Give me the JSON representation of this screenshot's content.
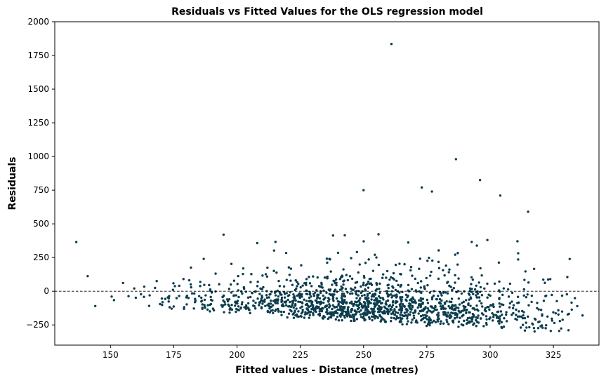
{
  "chart_data": {
    "type": "scatter",
    "title": "Residuals vs Fitted Values for the OLS regression model",
    "xlabel": "Fitted values - Distance (metres)",
    "ylabel": "Residuals",
    "xlim": [
      128,
      343
    ],
    "ylim": [
      -400,
      2000
    ],
    "xticks": [
      150,
      175,
      200,
      225,
      250,
      275,
      300,
      325
    ],
    "yticks": [
      -250,
      0,
      250,
      500,
      750,
      1000,
      1250,
      1500,
      1750,
      2000
    ],
    "grid": false,
    "reference_line": {
      "y": 0,
      "style": "dashed",
      "color": "#000000"
    },
    "point_color": "#0b3d4e",
    "notable_points": [
      {
        "x": 136.5,
        "y": 365
      },
      {
        "x": 141,
        "y": 112
      },
      {
        "x": 144,
        "y": -110
      },
      {
        "x": 250,
        "y": 750
      },
      {
        "x": 261,
        "y": 1835
      },
      {
        "x": 273,
        "y": 770
      },
      {
        "x": 277,
        "y": 740
      },
      {
        "x": 286.5,
        "y": 980
      },
      {
        "x": 296,
        "y": 825
      },
      {
        "x": 304,
        "y": 710
      },
      {
        "x": 315,
        "y": 590
      },
      {
        "x": 330.5,
        "y": 105
      },
      {
        "x": 336.5,
        "y": -180
      }
    ],
    "bulk_distribution": {
      "approx_point_count": 1500,
      "x_range": [
        150,
        335
      ],
      "x_center": 255,
      "residual_floor_by_x": [
        {
          "x": 160,
          "y": -125
        },
        {
          "x": 200,
          "y": -175
        },
        {
          "x": 250,
          "y": -230
        },
        {
          "x": 300,
          "y": -290
        },
        {
          "x": 335,
          "y": -320
        }
      ],
      "typical_upper_spread": 500
    }
  }
}
